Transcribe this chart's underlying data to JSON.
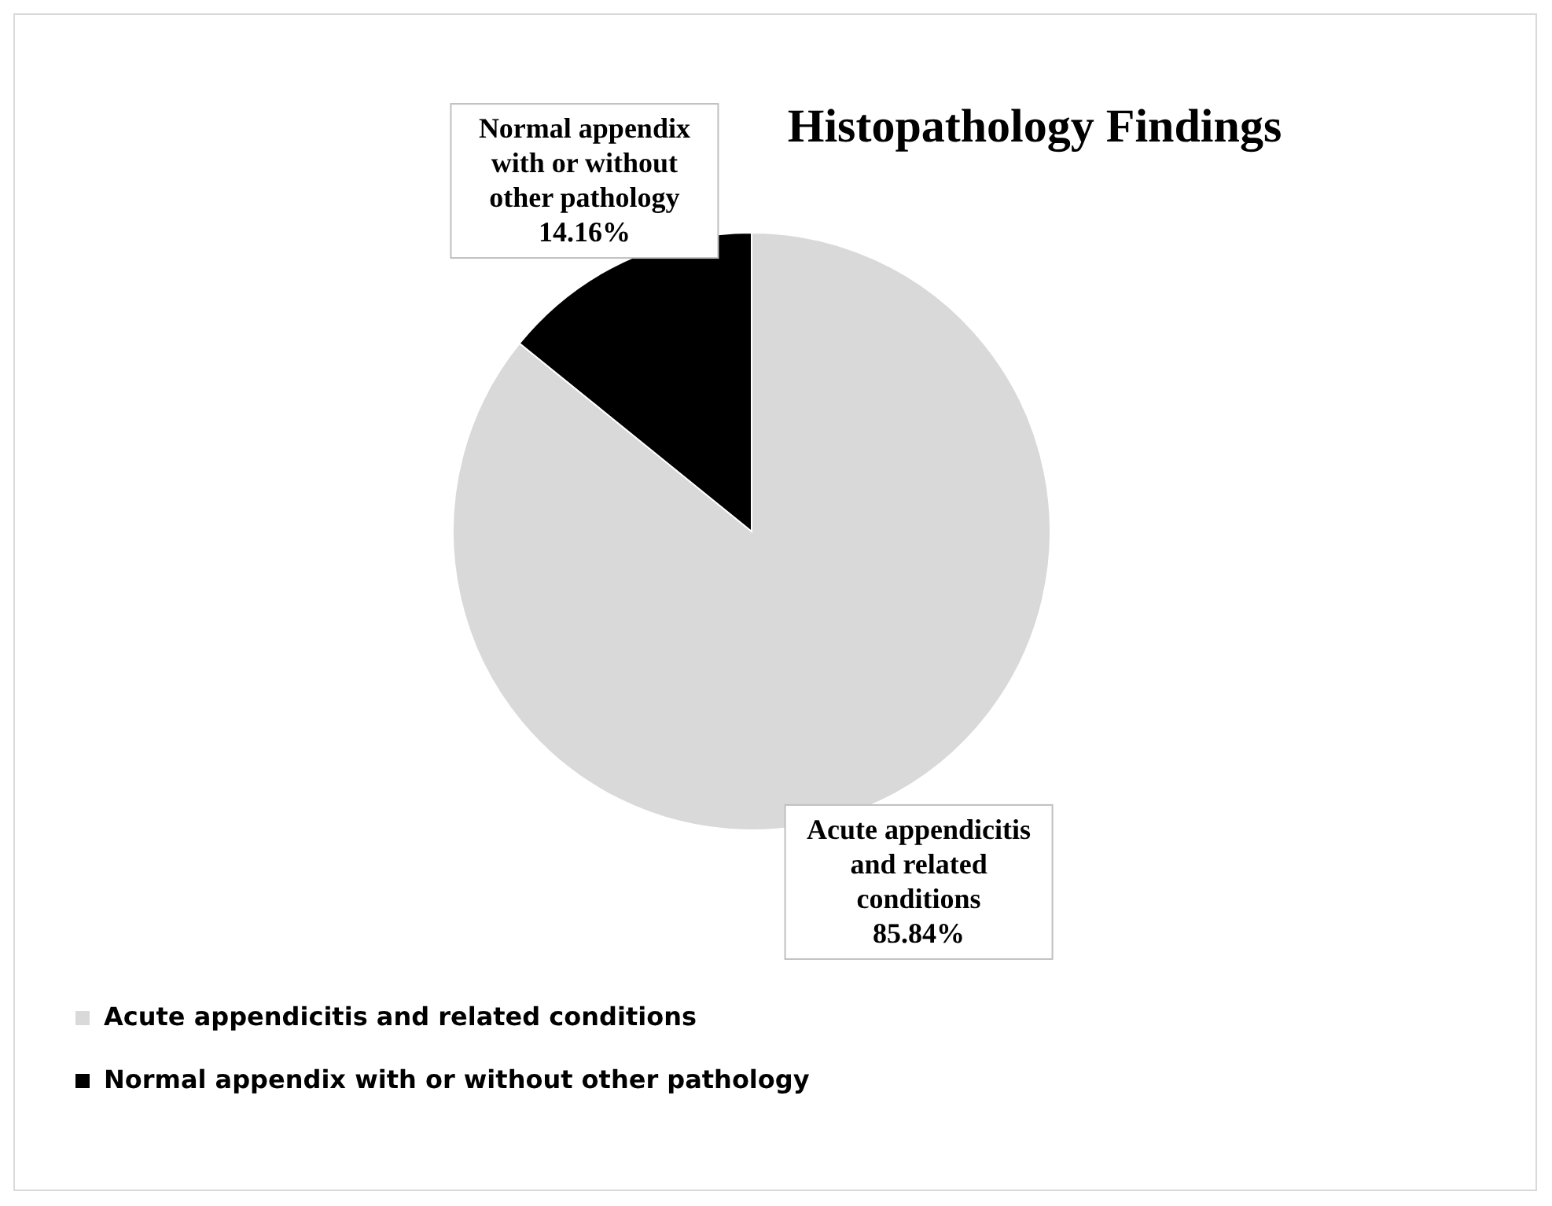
{
  "chart_data": {
    "type": "pie",
    "title": "Histopathology Findings",
    "categories": [
      "Acute appendicitis and related conditions",
      "Normal appendix with or without other pathology"
    ],
    "values": [
      85.84,
      14.16
    ],
    "value_labels": [
      "85.84%",
      "14.16%"
    ],
    "colors": [
      "#d9d9d9",
      "#000000"
    ],
    "legend": "bottom left"
  }
}
